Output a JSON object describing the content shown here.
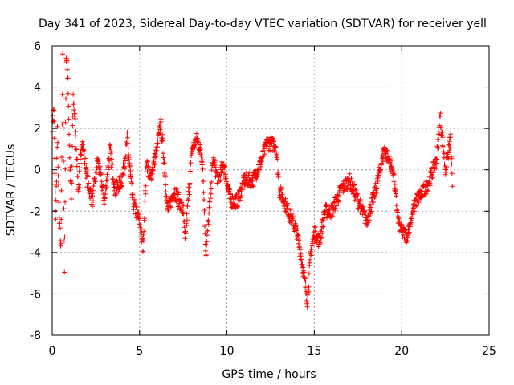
{
  "chart_data": {
    "type": "scatter",
    "title": "Day 341 of 2023, Sidereal Day-to-day VTEC variation (SDTVAR) for receiver yell",
    "xlabel": "GPS time / hours",
    "ylabel": "SDTVAR / TECUs",
    "xlim": [
      0,
      25
    ],
    "ylim": [
      -8,
      6
    ],
    "xticks": [
      0,
      5,
      10,
      15,
      20,
      25
    ],
    "yticks": [
      -8,
      -6,
      -4,
      -2,
      0,
      2,
      4,
      6
    ],
    "xtick_labels": [
      "0",
      "5",
      "10",
      "15",
      "20",
      "25"
    ],
    "ytick_labels": [
      "-8",
      "-6",
      "-4",
      "-2",
      "0",
      "2",
      "4",
      "6"
    ],
    "grid": true,
    "marker": "+",
    "color": "#ff0000",
    "series": [
      {
        "name": "SDTVAR",
        "anchors": [
          [
            0.0,
            2.2
          ],
          [
            0.1,
            3.0
          ],
          [
            0.15,
            -0.3
          ],
          [
            0.2,
            -2.3
          ],
          [
            0.3,
            1.8
          ],
          [
            0.4,
            -2.4
          ],
          [
            0.5,
            -3.8
          ],
          [
            0.6,
            5.3
          ],
          [
            0.7,
            -5.0
          ],
          [
            0.8,
            5.5
          ],
          [
            0.9,
            4.5
          ],
          [
            1.0,
            0.5
          ],
          [
            1.1,
            -1.5
          ],
          [
            1.2,
            3.5
          ],
          [
            1.3,
            2.5
          ],
          [
            1.5,
            -1.0
          ],
          [
            1.7,
            1.5
          ],
          [
            2.0,
            -0.5
          ],
          [
            2.3,
            -1.5
          ],
          [
            2.6,
            0.5
          ],
          [
            3.0,
            -1.5
          ],
          [
            3.3,
            1.0
          ],
          [
            3.6,
            -1.0
          ],
          [
            4.0,
            -0.5
          ],
          [
            4.3,
            1.5
          ],
          [
            4.6,
            -1.5
          ],
          [
            5.0,
            -2.5
          ],
          [
            5.2,
            -3.8
          ],
          [
            5.4,
            0.5
          ],
          [
            5.6,
            -0.5
          ],
          [
            6.0,
            1.0
          ],
          [
            6.2,
            2.3
          ],
          [
            6.4,
            0.5
          ],
          [
            6.6,
            -2.0
          ],
          [
            7.0,
            -1.0
          ],
          [
            7.5,
            -2.0
          ],
          [
            7.6,
            -3.5
          ],
          [
            8.0,
            1.0
          ],
          [
            8.3,
            1.5
          ],
          [
            8.6,
            0.5
          ],
          [
            8.8,
            -4.1
          ],
          [
            9.2,
            0.5
          ],
          [
            9.5,
            -0.5
          ],
          [
            9.8,
            0.3
          ],
          [
            10.2,
            -1.5
          ],
          [
            10.6,
            -1.5
          ],
          [
            11.0,
            -0.5
          ],
          [
            11.5,
            -0.5
          ],
          [
            12.0,
            0.5
          ],
          [
            12.3,
            1.3
          ],
          [
            12.8,
            1.2
          ],
          [
            13.0,
            -1.0
          ],
          [
            13.5,
            -2.0
          ],
          [
            14.0,
            -3.0
          ],
          [
            14.3,
            -4.5
          ],
          [
            14.6,
            -6.3
          ],
          [
            14.8,
            -4.0
          ],
          [
            15.0,
            -3.0
          ],
          [
            15.3,
            -3.5
          ],
          [
            15.6,
            -2.0
          ],
          [
            16.0,
            -2.0
          ],
          [
            16.5,
            -1.0
          ],
          [
            17.0,
            -0.5
          ],
          [
            17.5,
            -1.5
          ],
          [
            18.0,
            -2.5
          ],
          [
            18.5,
            -1.0
          ],
          [
            19.0,
            1.0
          ],
          [
            19.5,
            0.0
          ],
          [
            19.8,
            -2.5
          ],
          [
            20.0,
            -3.0
          ],
          [
            20.3,
            -3.2
          ],
          [
            20.8,
            -1.5
          ],
          [
            21.3,
            -1.0
          ],
          [
            21.6,
            -0.5
          ],
          [
            22.0,
            0.5
          ],
          [
            22.2,
            2.6
          ],
          [
            22.5,
            0.0
          ],
          [
            22.8,
            1.5
          ],
          [
            22.9,
            -0.8
          ]
        ]
      }
    ]
  }
}
